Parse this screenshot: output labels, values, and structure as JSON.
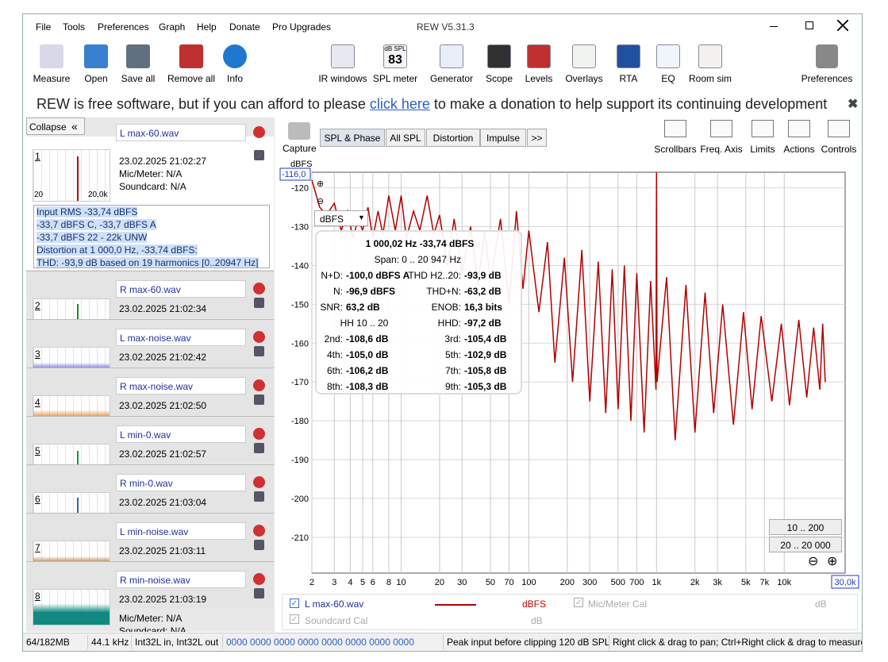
{
  "window": {
    "title": "REW V5.31.3",
    "menu": [
      "File",
      "Tools",
      "Preferences",
      "Graph",
      "Help",
      "Donate",
      "Pro Upgrades"
    ]
  },
  "toolbar": {
    "left": [
      "Measure",
      "Open",
      "Save all",
      "Remove all",
      "Info"
    ],
    "center": [
      "IR windows",
      "SPL meter",
      "Generator",
      "Scope",
      "Levels",
      "Overlays",
      "RTA",
      "EQ",
      "Room sim"
    ],
    "right": "Preferences",
    "spl_icon": [
      "dB SPL",
      "83"
    ]
  },
  "banner": {
    "before": "REW is free software, but if you can afford to please",
    "link": "click here",
    "after": "to make a donation to help support its continuing development"
  },
  "panel": {
    "collapse": "Collapse",
    "first": {
      "mic": "Mic/Meter: N/A",
      "soundcard": "Soundcard: N/A",
      "thumb_min": "20",
      "thumb_max": "20,0k"
    },
    "info_lines": [
      "Input RMS -33,74 dBFS",
      "-33,7 dBFS C, -33,7 dBFS A",
      "-33,7 dBFS 22 - 22k UNW",
      "Distortion at 1 000,0 Hz, -33,74 dBFS:",
      "THD: -93,9 dB based on 19 harmonics [0..20947 Hz]"
    ],
    "measurements": [
      {
        "number": "1",
        "name": "L max-60.wav",
        "date": "23.02.2025 21:02:27",
        "color": "#b01010"
      },
      {
        "number": "2",
        "name": "R max-60.wav",
        "date": "23.02.2025 21:02:34",
        "color": "#1a8a2a"
      },
      {
        "number": "3",
        "name": "L max-noise.wav",
        "date": "23.02.2025 21:02:42",
        "color": "#4040c8"
      },
      {
        "number": "4",
        "name": "R max-noise.wav",
        "date": "23.02.2025 21:02:50",
        "color": "#e07a10"
      },
      {
        "number": "5",
        "name": "L min-0.wav",
        "date": "23.02.2025 21:02:57",
        "color": "#1a9a3a"
      },
      {
        "number": "6",
        "name": "R min-0.wav",
        "date": "23.02.2025 21:03:04",
        "color": "#3060c0"
      },
      {
        "number": "7",
        "name": "L min-noise.wav",
        "date": "23.02.2025 21:03:11",
        "color": "#a05a10"
      },
      {
        "number": "8",
        "name": "R min-noise.wav",
        "date": "23.02.2025 21:03:19",
        "color": "#108a80"
      }
    ],
    "last": {
      "mic": "Mic/Meter: N/A",
      "soundcard": "Soundcard: N/A"
    }
  },
  "graph": {
    "capture": "Capture",
    "tabs": [
      "SPL & Phase",
      "All SPL",
      "Distortion",
      "Impulse",
      ">>"
    ],
    "tools": [
      "Scrollbars",
      "Freq. Axis",
      "Limits",
      "Actions",
      "Controls"
    ],
    "unit_select": "dBFS",
    "ranges": [
      "10 .. 200",
      "20 .. 20 000"
    ]
  },
  "overlay": {
    "title": "1 000,02 Hz  -33,74 dBFS",
    "span": "Span: 0 .. 20 947 Hz",
    "rows": [
      {
        "left": [
          "N+D:",
          "-100,0 dBFS A"
        ],
        "right": [
          "THD H2..20:",
          "-93,9 dB"
        ]
      },
      {
        "left": [
          "N:",
          "-96,9 dBFS"
        ],
        "right": [
          "THD+N:",
          "-63,2 dB"
        ]
      },
      {
        "left": [
          "SNR:",
          "63,2 dB"
        ],
        "right": [
          "ENOB:",
          "16,3 bits"
        ]
      },
      {
        "left": [
          "HH 10 .. 20"
        ],
        "right": [
          "HHD:",
          "-97,2 dB"
        ]
      },
      {
        "left": [
          "2nd:",
          "-108,6 dB"
        ],
        "right": [
          "3rd:",
          "-105,4 dB"
        ]
      },
      {
        "left": [
          "4th:",
          "-105,0 dB"
        ],
        "right": [
          "5th:",
          "-102,9 dB"
        ]
      },
      {
        "left": [
          "6th:",
          "-106,2 dB"
        ],
        "right": [
          "7th:",
          "-105,8 dB"
        ]
      },
      {
        "left": [
          "8th:",
          "-108,3 dB"
        ],
        "right": [
          "9th:",
          "-105,3 dB"
        ]
      }
    ]
  },
  "chart_data": {
    "type": "line",
    "y_label": "dBFS",
    "top_label": "-116,0",
    "right_label": "30,0k",
    "log_x": true,
    "grid": true,
    "ylim": [
      -219.2,
      -116
    ],
    "yticks": [
      -120,
      -130,
      -140,
      -150,
      -160,
      -170,
      -180,
      -190,
      -200,
      -210
    ],
    "xlim": [
      2,
      30000
    ],
    "xticks": [
      2,
      3,
      4,
      5,
      6,
      8,
      10,
      20,
      30,
      50,
      70,
      100,
      200,
      300,
      500,
      700,
      {
        "value": 1000,
        "label": "1k"
      },
      {
        "value": 2000,
        "label": "2k"
      },
      {
        "value": 3000,
        "label": "3k"
      },
      {
        "value": 5000,
        "label": "5k"
      },
      {
        "value": 7000,
        "label": "7k"
      },
      {
        "value": 10000,
        "label": "10k"
      }
    ],
    "series": [
      {
        "name": "L max-60.wav",
        "color": "#b00000",
        "x": [
          2,
          2.3,
          2.6,
          3,
          3.4,
          3.8,
          4.2,
          4.6,
          5,
          5.5,
          6,
          6.6,
          7.2,
          8,
          9,
          10,
          11,
          12.5,
          14,
          16,
          18,
          20,
          23,
          26,
          30,
          35,
          40,
          45,
          50,
          60,
          70,
          80,
          90,
          100,
          120,
          140,
          160,
          190,
          220,
          260,
          300,
          350,
          400,
          450,
          500,
          560,
          630,
          700,
          800,
          900,
          990,
          1000,
          1010,
          1200,
          1400,
          1700,
          2000,
          2400,
          2800,
          3300,
          4000,
          4800,
          5600,
          6600,
          8000,
          9500,
          11000,
          13000,
          15000,
          17000,
          19000,
          20000,
          20947
        ],
        "values": [
          -118,
          -125,
          -127,
          -124,
          -131,
          -126,
          -133,
          -128,
          -131,
          -125,
          -133,
          -126,
          -132,
          -122,
          -131,
          -122,
          -133,
          -126,
          -131,
          -122,
          -132,
          -127,
          -140,
          -128,
          -142,
          -130,
          -145,
          -131,
          -144,
          -128,
          -150,
          -126,
          -146,
          -131,
          -152,
          -134,
          -165,
          -138,
          -170,
          -136,
          -175,
          -139,
          -178,
          -141,
          -177,
          -140,
          -180,
          -142,
          -183,
          -144,
          -172,
          -116,
          -170,
          -143,
          -185,
          -145,
          -183,
          -147,
          -178,
          -150,
          -181,
          -152,
          -177,
          -153,
          -175,
          -155,
          -176,
          -154,
          -174,
          -156,
          -172,
          -155,
          -170
        ]
      }
    ]
  },
  "legend_panel": {
    "unit": "dBFS",
    "mic": "Mic/Meter Cal",
    "mic_unit": "dB",
    "soundcard": "Soundcard Cal",
    "soundcard_unit": "dB"
  },
  "status": [
    "64/182MB",
    "44.1 kHz",
    "Int32L in, Int32L out",
    "0000 0000  0000 0000  0000 0000  0000 0000",
    "Peak input before clipping 120 dB SPL",
    "Right click & drag to pan; Ctrl+Right click & drag to measure"
  ]
}
